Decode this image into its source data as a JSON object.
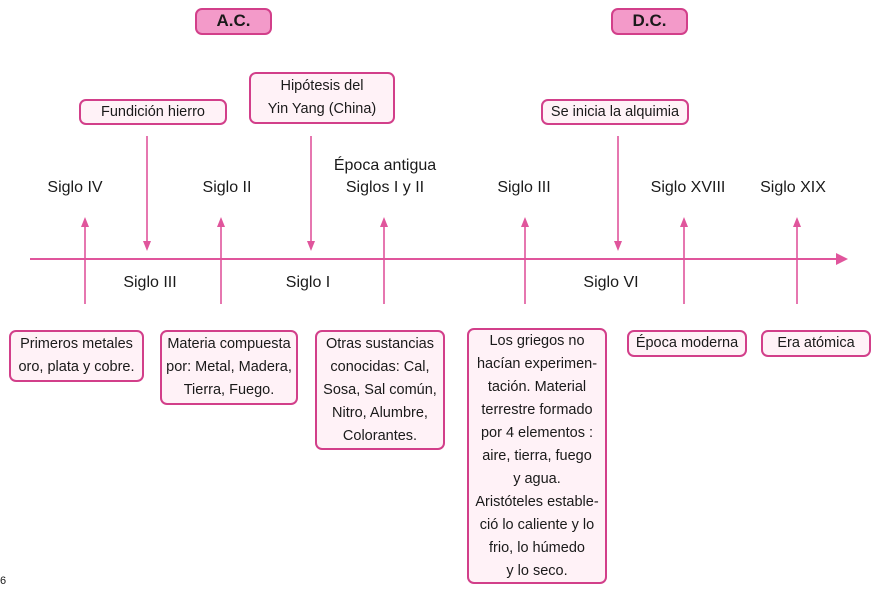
{
  "eras": {
    "bc": "A.C.",
    "ad": "D.C."
  },
  "top_events": {
    "fundicion": "Fundición hierro",
    "yinyang": "Hipótesis del\nYin Yang (China)",
    "alquimia": "Se inicia la alquimia"
  },
  "labels_above": {
    "siglo_iv": "Siglo IV",
    "siglo_ii": "Siglo II",
    "epoca_antigua": "Época antigua\nSiglos I y II",
    "siglo_iii_dc": "Siglo III",
    "siglo_xviii": "Siglo XVIII",
    "siglo_xix": "Siglo XIX"
  },
  "labels_below": {
    "siglo_iii_ac": "Siglo III",
    "siglo_i": "Siglo I",
    "siglo_vi": "Siglo VI"
  },
  "bottom_boxes": {
    "metales": "Primeros metales\noro, plata y cobre.",
    "materia": "Materia compuesta\npor: Metal, Madera,\nTierra, Fuego.",
    "sustancias": "Otras sustancias\nconocidas: Cal,\nSosa, Sal común,\nNitro, Alumbre,\nColorantes.",
    "griegos": "Los griegos no\nhacían experimen-\ntación. Material\nterrestre formado\npor 4 elementos :\naire, tierra, fuego\ny agua.\nAristóteles estable-\nció lo caliente y lo\nfrio, lo húmedo\ny lo seco.",
    "moderna": "Época moderna",
    "atomica": "Era atómica"
  },
  "page_number": "6",
  "colors": {
    "line": "#e0559c",
    "box_border": "#d23f8a",
    "box_fill": "#fff2f7",
    "era_fill": "#f39ac9"
  }
}
